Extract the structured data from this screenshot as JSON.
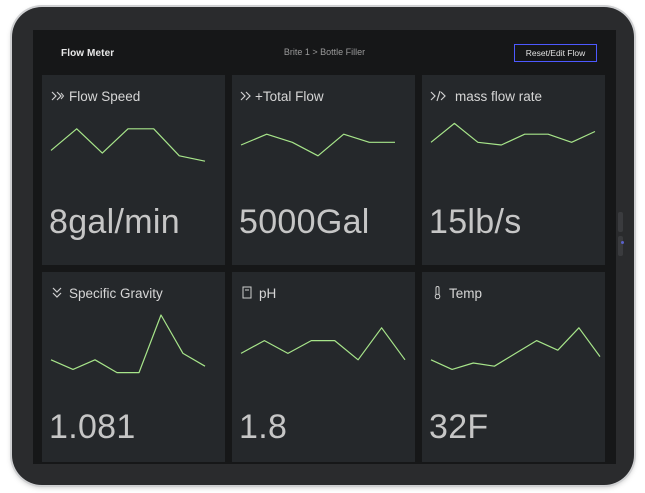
{
  "header": {
    "app_title": "Flow Meter",
    "breadcrumb": "Brite 1 > Bottle Filler",
    "reset_button_label": "Reset/Edit Flow"
  },
  "colors": {
    "line": "#a7e58a",
    "tile_bg": "#25282b",
    "screen_bg": "#161718",
    "button_border": "#4d59ff"
  },
  "tiles": [
    {
      "label": "Flow Speed",
      "icon": "flow-speed-chevrons-icon",
      "value": "8gal/min",
      "trend": [
        8,
        16,
        7,
        16,
        16,
        6,
        4
      ]
    },
    {
      "label": "+Total Flow",
      "icon": "total-flow-chevrons-icon",
      "value": "5000Gal",
      "trend": [
        10,
        14,
        11,
        6,
        14,
        11,
        11
      ]
    },
    {
      "label": "mass flow rate",
      "icon": "mass-flow-rate-icon",
      "value": "15lb/s",
      "trend": [
        11,
        18,
        11,
        10,
        14,
        14,
        11,
        15
      ]
    },
    {
      "label": "Specific Gravity",
      "icon": "specific-gravity-chevron-icon",
      "value": "1.081",
      "trend": [
        6,
        3,
        6,
        2,
        2,
        20,
        8,
        4
      ]
    },
    {
      "label": "pH",
      "icon": "ph-meter-icon",
      "value": "1.8",
      "trend": [
        8,
        12,
        8,
        12,
        12,
        6,
        16,
        6
      ]
    },
    {
      "label": "Temp",
      "icon": "thermometer-icon",
      "value": "32F",
      "trend": [
        6,
        3,
        5,
        4,
        8,
        12,
        9,
        16,
        7
      ]
    }
  ]
}
